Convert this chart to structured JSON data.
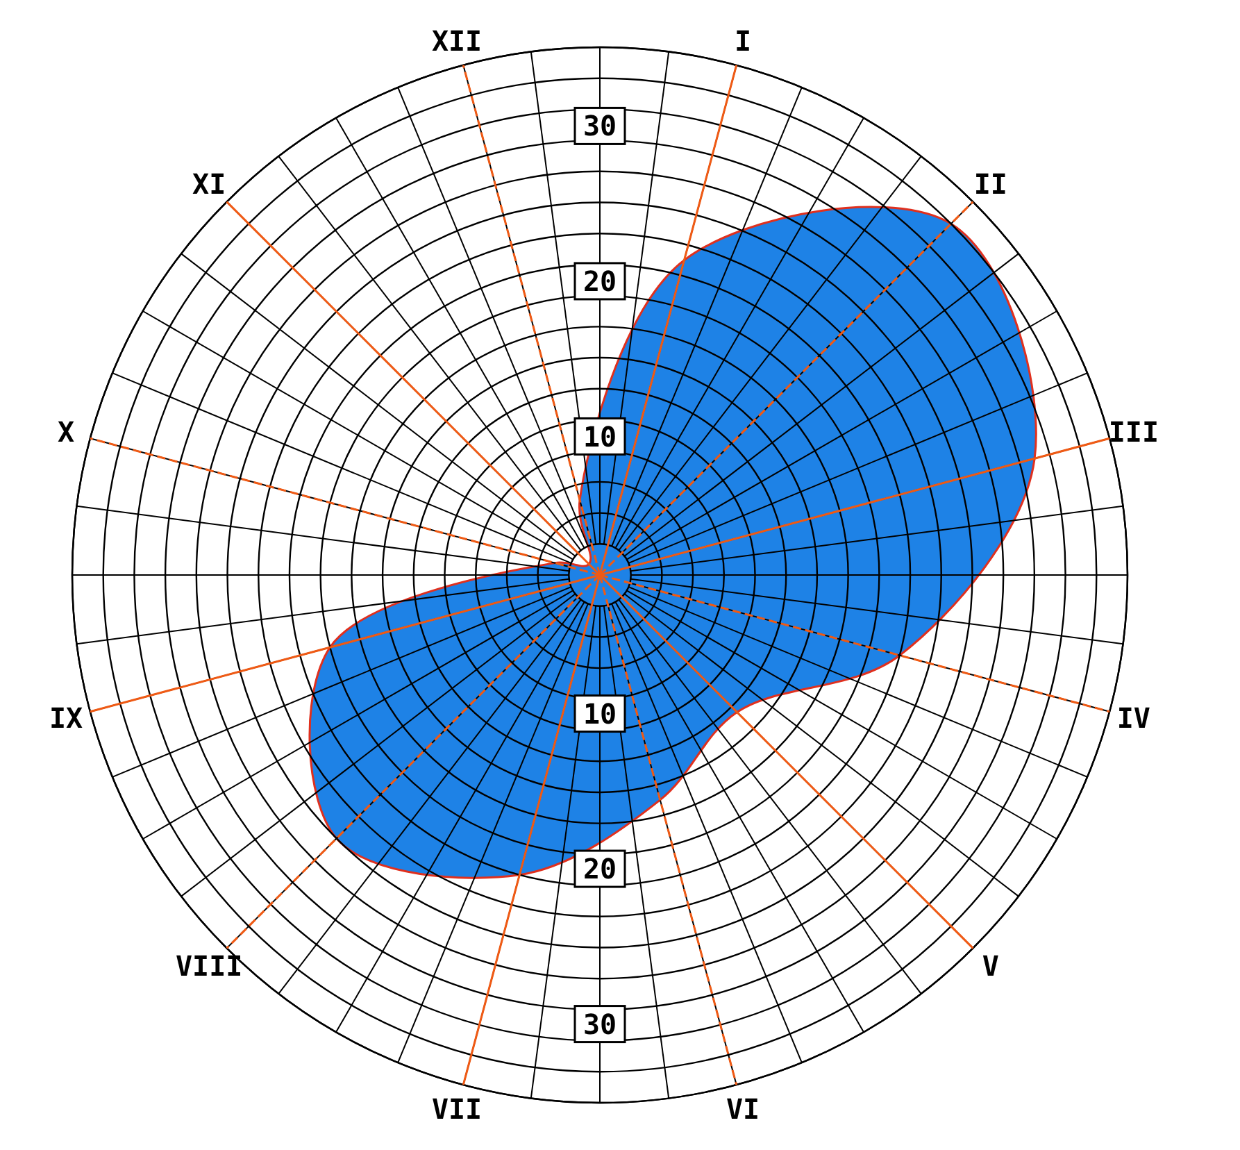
{
  "chart_data": {
    "type": "radar",
    "categories": [
      "XII",
      "I",
      "II",
      "III",
      "IV",
      "V",
      "VI",
      "VII",
      "VIII",
      "IX",
      "X",
      "XI"
    ],
    "series": [
      {
        "color": "#1e82e6",
        "values": [
          5,
          21,
          32,
          29,
          20,
          12.5,
          15,
          20,
          24,
          18,
          3,
          1
        ]
      }
    ],
    "ylim": [
      0,
      34
    ],
    "yticks": [
      10,
      20,
      30
    ],
    "annotations": [
      "10",
      "20",
      "30"
    ],
    "grid": true
  }
}
